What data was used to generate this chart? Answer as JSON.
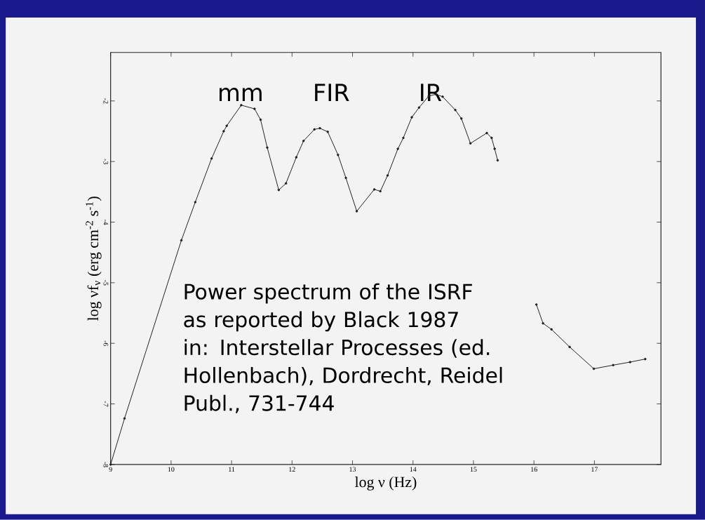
{
  "chart_data": {
    "type": "line",
    "xlabel": "log ν (Hz)",
    "ylabel": "log νf$_{ν}$ (erg cm$^{-2}$ s$^{-1}$)",
    "xlim": [
      9,
      18.1
    ],
    "ylim": [
      -8,
      -1.2
    ],
    "xticks": [
      9,
      10,
      11,
      12,
      13,
      14,
      15,
      16,
      17
    ],
    "yticks": [
      -8,
      -7,
      -6,
      -5,
      -4,
      -3,
      -2
    ],
    "marker": "circle",
    "grid": false,
    "series": [
      {
        "color": "#222222",
        "x": [
          9,
          9.23,
          10.17,
          10.4,
          10.67,
          10.87,
          10.92,
          11.16,
          11.38,
          11.48,
          11.59,
          11.78,
          11.9,
          12.07,
          12.19,
          12.37,
          12.46,
          12.59,
          12.76,
          12.89,
          13.07,
          13.36,
          13.46,
          13.58,
          13.75,
          13.84,
          13.98,
          14.1,
          14.26,
          14.38,
          14.49,
          14.7,
          14.8,
          14.95,
          15.22,
          15.3,
          15.35,
          15.4
        ],
        "values": [
          -8,
          -7.24,
          -4.3,
          -3.67,
          -2.95,
          -2.5,
          -2.41,
          -2.07,
          -2.13,
          -2.31,
          -2.77,
          -3.47,
          -3.36,
          -2.93,
          -2.66,
          -2.47,
          -2.45,
          -2.51,
          -2.89,
          -3.27,
          -3.82,
          -3.46,
          -3.49,
          -3.23,
          -2.79,
          -2.61,
          -2.27,
          -2.11,
          -1.92,
          -1.89,
          -1.93,
          -2.15,
          -2.29,
          -2.7,
          -2.53,
          -2.61,
          -2.79,
          -2.98
        ]
      },
      {
        "color": "#222222",
        "x": [
          16.04,
          16.15,
          16.29,
          16.59,
          16.99,
          17.31,
          17.59,
          17.84
        ],
        "values": [
          -5.36,
          -5.67,
          -5.77,
          -6.06,
          -6.42,
          -6.36,
          -6.31,
          -6.26
        ]
      }
    ],
    "annotations": [
      "mm",
      "FIR",
      "IR",
      "Power spectrum of the ISRF as reported by Black 1987 in: Interstellar Processes (ed. Hollenbach), Dordrecht, Reidel Publ., 731-744"
    ]
  }
}
